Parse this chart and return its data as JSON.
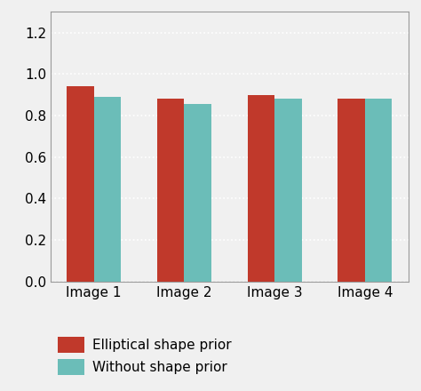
{
  "categories": [
    "Image 1",
    "Image 2",
    "Image 3",
    "Image 4"
  ],
  "series": [
    {
      "label": "Elliptical shape prior",
      "color": "#C0392B",
      "values": [
        0.94,
        0.88,
        0.9,
        0.88
      ]
    },
    {
      "label": "Without shape prior",
      "color": "#6BBDB8",
      "values": [
        0.89,
        0.855,
        0.88,
        0.88
      ]
    }
  ],
  "ylim": [
    0,
    1.3
  ],
  "yticks": [
    0,
    0.2,
    0.4,
    0.6,
    0.8,
    1.0,
    1.2
  ],
  "bar_width": 0.3,
  "background_color": "#f0f0f0",
  "plot_bg_color": "#f0f0f0",
  "grid_color": "#ffffff",
  "grid_linestyle": ":",
  "grid_linewidth": 1.2,
  "tick_fontsize": 11,
  "legend_fontsize": 11,
  "spine_color": "#999999"
}
